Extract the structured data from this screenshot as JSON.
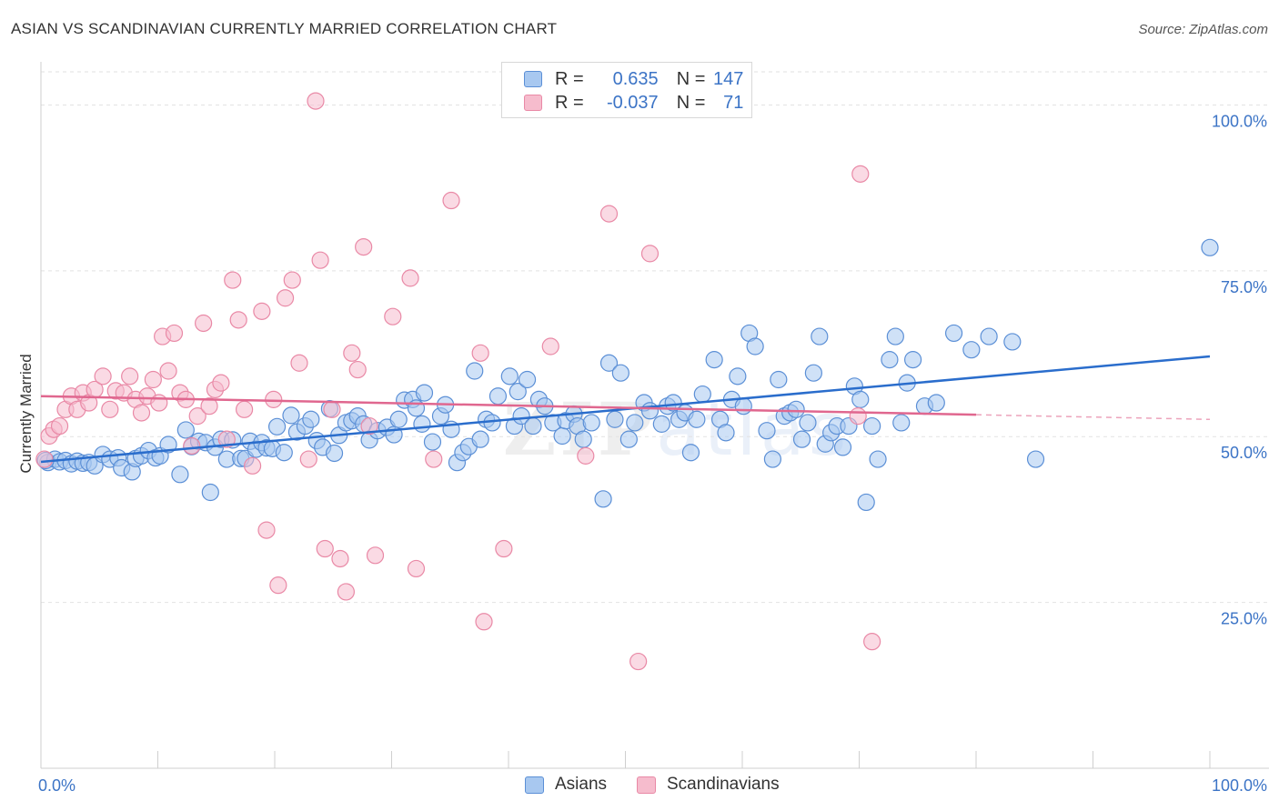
{
  "header": {
    "title": "ASIAN VS SCANDINAVIAN CURRENTLY MARRIED CORRELATION CHART",
    "source": "Source: ZipAtlas.com"
  },
  "watermark": {
    "zip": "ZIP",
    "atlas": "atlas"
  },
  "legend": {
    "rows": [
      {
        "r_label": "R =",
        "r_value": "0.635",
        "n_label": "N =",
        "n_value": "147"
      },
      {
        "r_label": "R =",
        "r_value": "-0.037",
        "n_label": "N =",
        "n_value": "71"
      }
    ]
  },
  "bottom_legend": {
    "items": [
      "Asians",
      "Scandinavians"
    ]
  },
  "colors": {
    "asians_fill": "#a8c8f0",
    "asians_stroke": "#5b8fd6",
    "asians_line": "#2a6dcc",
    "scand_fill": "#f6bccd",
    "scand_stroke": "#e989a6",
    "scand_line": "#e0678f",
    "tick_text": "#3c74c6",
    "grid": "#e2e2e2"
  },
  "chart_data": {
    "type": "scatter",
    "xlabel": "",
    "ylabel": "Currently Married",
    "xlim": [
      0,
      100
    ],
    "ylim": [
      0,
      105
    ],
    "x_tick_labels": [
      {
        "value": 0,
        "label": "0.0%"
      },
      {
        "value": 100,
        "label": "100.0%"
      }
    ],
    "y_tick_labels": [
      {
        "value": 25,
        "label": "25.0%"
      },
      {
        "value": 50,
        "label": "50.0%"
      },
      {
        "value": 75,
        "label": "75.0%"
      },
      {
        "value": 100,
        "label": "100.0%"
      }
    ],
    "grid": "horizontal dashed",
    "series": [
      {
        "name": "Asians",
        "trend": {
          "x": [
            0,
            100
          ],
          "y": [
            46.2,
            62.1
          ],
          "dashed_from": null
        },
        "points": [
          [
            0.6,
            46.1
          ],
          [
            1.2,
            46.6
          ],
          [
            1.6,
            46.2
          ],
          [
            2.1,
            46.4
          ],
          [
            2.6,
            45.9
          ],
          [
            3.1,
            46.3
          ],
          [
            3.6,
            46.0
          ],
          [
            4.1,
            46.1
          ],
          [
            4.6,
            45.6
          ],
          [
            5.3,
            47.3
          ],
          [
            5.9,
            46.6
          ],
          [
            6.6,
            46.8
          ],
          [
            6.9,
            45.3
          ],
          [
            7.8,
            44.7
          ],
          [
            8.1,
            46.7
          ],
          [
            8.6,
            47.1
          ],
          [
            9.2,
            47.9
          ],
          [
            9.8,
            46.8
          ],
          [
            10.2,
            47.1
          ],
          [
            10.9,
            48.8
          ],
          [
            11.9,
            44.3
          ],
          [
            12.4,
            51.0
          ],
          [
            12.9,
            48.5
          ],
          [
            13.5,
            49.3
          ],
          [
            14.1,
            49.1
          ],
          [
            14.5,
            41.6
          ],
          [
            14.9,
            48.4
          ],
          [
            15.4,
            49.6
          ],
          [
            15.9,
            46.6
          ],
          [
            16.4,
            49.5
          ],
          [
            17.1,
            46.7
          ],
          [
            17.5,
            46.7
          ],
          [
            17.9,
            49.3
          ],
          [
            18.4,
            48.1
          ],
          [
            18.9,
            49.1
          ],
          [
            19.3,
            48.3
          ],
          [
            19.8,
            48.2
          ],
          [
            20.2,
            51.5
          ],
          [
            20.8,
            47.6
          ],
          [
            21.4,
            53.2
          ],
          [
            21.9,
            50.7
          ],
          [
            22.6,
            51.6
          ],
          [
            23.1,
            52.6
          ],
          [
            23.6,
            49.4
          ],
          [
            24.1,
            48.4
          ],
          [
            24.7,
            54.2
          ],
          [
            25.1,
            47.5
          ],
          [
            25.5,
            50.2
          ],
          [
            26.1,
            52.1
          ],
          [
            26.6,
            52.4
          ],
          [
            27.1,
            53.1
          ],
          [
            27.6,
            51.9
          ],
          [
            28.1,
            49.5
          ],
          [
            28.8,
            50.9
          ],
          [
            29.6,
            51.4
          ],
          [
            30.2,
            50.3
          ],
          [
            30.6,
            52.6
          ],
          [
            31.1,
            55.5
          ],
          [
            31.8,
            55.6
          ],
          [
            32.1,
            54.3
          ],
          [
            32.6,
            51.9
          ],
          [
            32.8,
            56.6
          ],
          [
            33.5,
            49.2
          ],
          [
            34.2,
            53.1
          ],
          [
            34.6,
            54.8
          ],
          [
            35.1,
            51.1
          ],
          [
            35.6,
            46.1
          ],
          [
            36.1,
            47.6
          ],
          [
            36.6,
            48.5
          ],
          [
            37.1,
            59.9
          ],
          [
            37.6,
            49.6
          ],
          [
            38.1,
            52.6
          ],
          [
            38.6,
            52.1
          ],
          [
            39.1,
            56.1
          ],
          [
            40.1,
            59.1
          ],
          [
            40.5,
            51.6
          ],
          [
            40.8,
            56.8
          ],
          [
            41.1,
            53.1
          ],
          [
            41.6,
            58.6
          ],
          [
            42.1,
            51.6
          ],
          [
            42.6,
            55.6
          ],
          [
            43.1,
            54.6
          ],
          [
            43.8,
            52.1
          ],
          [
            44.6,
            50.1
          ],
          [
            44.9,
            52.4
          ],
          [
            45.6,
            53.4
          ],
          [
            45.9,
            51.6
          ],
          [
            46.4,
            49.6
          ],
          [
            47.1,
            52.1
          ],
          [
            48.1,
            40.6
          ],
          [
            48.6,
            61.1
          ],
          [
            49.1,
            52.6
          ],
          [
            49.6,
            59.6
          ],
          [
            50.3,
            49.6
          ],
          [
            50.8,
            52.1
          ],
          [
            51.6,
            55.1
          ],
          [
            52.1,
            53.9
          ],
          [
            53.1,
            51.9
          ],
          [
            53.6,
            54.6
          ],
          [
            54.1,
            55.1
          ],
          [
            54.6,
            52.6
          ],
          [
            55.1,
            53.6
          ],
          [
            55.6,
            47.6
          ],
          [
            56.1,
            52.6
          ],
          [
            56.6,
            56.4
          ],
          [
            57.6,
            61.6
          ],
          [
            58.1,
            52.6
          ],
          [
            58.6,
            50.6
          ],
          [
            59.1,
            55.6
          ],
          [
            59.6,
            59.1
          ],
          [
            60.1,
            54.6
          ],
          [
            60.6,
            65.6
          ],
          [
            61.1,
            63.6
          ],
          [
            62.1,
            50.9
          ],
          [
            62.6,
            46.6
          ],
          [
            63.1,
            58.6
          ],
          [
            63.6,
            53.1
          ],
          [
            64.1,
            53.6
          ],
          [
            64.6,
            54.1
          ],
          [
            65.1,
            49.6
          ],
          [
            65.6,
            52.1
          ],
          [
            66.1,
            59.6
          ],
          [
            66.6,
            65.1
          ],
          [
            67.1,
            48.9
          ],
          [
            67.6,
            50.6
          ],
          [
            68.1,
            51.6
          ],
          [
            68.6,
            48.4
          ],
          [
            69.1,
            51.6
          ],
          [
            69.6,
            57.6
          ],
          [
            70.1,
            55.6
          ],
          [
            70.6,
            40.1
          ],
          [
            71.1,
            51.6
          ],
          [
            71.6,
            46.6
          ],
          [
            72.6,
            61.6
          ],
          [
            73.1,
            65.1
          ],
          [
            73.6,
            52.1
          ],
          [
            74.1,
            58.1
          ],
          [
            74.6,
            61.6
          ],
          [
            75.6,
            54.6
          ],
          [
            76.6,
            55.1
          ],
          [
            78.1,
            65.6
          ],
          [
            79.6,
            63.1
          ],
          [
            81.1,
            65.1
          ],
          [
            83.1,
            64.3
          ],
          [
            85.1,
            46.6
          ],
          [
            100.0,
            78.5
          ],
          [
            0.4,
            46.4
          ]
        ]
      },
      {
        "name": "Scandinavians",
        "trend": {
          "x": [
            0,
            100
          ],
          "y": [
            56.1,
            52.6
          ],
          "dashed_from": 80
        },
        "points": [
          [
            0.3,
            46.6
          ],
          [
            0.7,
            50.1
          ],
          [
            1.1,
            51.1
          ],
          [
            1.6,
            51.6
          ],
          [
            2.1,
            54.1
          ],
          [
            2.6,
            56.1
          ],
          [
            3.1,
            54.1
          ],
          [
            3.6,
            56.6
          ],
          [
            4.1,
            55.1
          ],
          [
            4.6,
            57.1
          ],
          [
            5.3,
            59.1
          ],
          [
            5.9,
            54.1
          ],
          [
            6.4,
            56.9
          ],
          [
            7.1,
            56.6
          ],
          [
            7.6,
            59.1
          ],
          [
            8.1,
            55.6
          ],
          [
            8.6,
            53.6
          ],
          [
            9.1,
            56.1
          ],
          [
            9.6,
            58.6
          ],
          [
            10.1,
            55.1
          ],
          [
            10.4,
            65.1
          ],
          [
            10.9,
            59.9
          ],
          [
            11.4,
            65.6
          ],
          [
            11.9,
            56.6
          ],
          [
            12.4,
            55.6
          ],
          [
            12.9,
            48.6
          ],
          [
            13.4,
            53.1
          ],
          [
            13.9,
            67.1
          ],
          [
            14.4,
            54.6
          ],
          [
            14.9,
            57.1
          ],
          [
            15.4,
            58.1
          ],
          [
            15.9,
            49.6
          ],
          [
            16.4,
            73.6
          ],
          [
            16.9,
            67.6
          ],
          [
            17.4,
            54.1
          ],
          [
            18.1,
            45.6
          ],
          [
            18.9,
            68.9
          ],
          [
            19.3,
            35.9
          ],
          [
            19.9,
            55.6
          ],
          [
            20.3,
            27.6
          ],
          [
            20.9,
            70.9
          ],
          [
            21.5,
            73.6
          ],
          [
            22.1,
            61.1
          ],
          [
            22.9,
            46.6
          ],
          [
            23.5,
            100.6
          ],
          [
            23.9,
            76.6
          ],
          [
            24.3,
            33.1
          ],
          [
            24.9,
            54.1
          ],
          [
            25.6,
            31.6
          ],
          [
            26.1,
            26.6
          ],
          [
            26.6,
            62.6
          ],
          [
            27.1,
            60.1
          ],
          [
            27.6,
            78.6
          ],
          [
            28.1,
            51.6
          ],
          [
            28.6,
            32.1
          ],
          [
            30.1,
            68.1
          ],
          [
            31.6,
            73.9
          ],
          [
            32.1,
            30.1
          ],
          [
            33.6,
            46.6
          ],
          [
            35.1,
            85.6
          ],
          [
            37.6,
            62.6
          ],
          [
            37.9,
            22.1
          ],
          [
            39.6,
            33.1
          ],
          [
            43.6,
            63.6
          ],
          [
            46.6,
            47.1
          ],
          [
            48.6,
            83.6
          ],
          [
            51.1,
            16.1
          ],
          [
            52.1,
            77.6
          ],
          [
            69.9,
            53.1
          ],
          [
            70.1,
            89.6
          ],
          [
            71.1,
            19.1
          ]
        ]
      }
    ]
  }
}
